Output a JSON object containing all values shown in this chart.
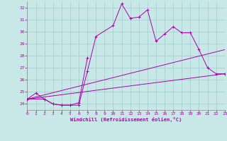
{
  "xlabel": "Windchill (Refroidissement éolien,°C)",
  "xlim": [
    0,
    23
  ],
  "ylim": [
    23.5,
    32.5
  ],
  "xticks": [
    0,
    1,
    2,
    3,
    4,
    5,
    6,
    7,
    8,
    9,
    10,
    11,
    12,
    13,
    14,
    15,
    16,
    17,
    18,
    19,
    20,
    21,
    22,
    23
  ],
  "yticks": [
    24,
    25,
    26,
    27,
    28,
    29,
    30,
    31,
    32
  ],
  "background_color": "#c8e8e8",
  "grid_color": "#a0cccc",
  "line_color": "#aa00aa",
  "lines": [
    {
      "x": [
        0,
        1,
        2,
        3,
        4,
        5,
        6,
        7,
        8,
        10,
        11,
        12,
        13,
        14,
        15,
        16,
        17,
        18,
        19,
        20,
        21,
        22,
        23
      ],
      "y": [
        24.4,
        24.9,
        24.4,
        24.0,
        23.9,
        23.9,
        23.9,
        26.7,
        29.6,
        30.5,
        32.3,
        31.1,
        31.2,
        31.8,
        29.2,
        29.8,
        30.4,
        29.9,
        29.9,
        28.5,
        27.0,
        26.5,
        26.5
      ],
      "marker": true
    },
    {
      "x": [
        0,
        2,
        3,
        4,
        5,
        6,
        7
      ],
      "y": [
        24.4,
        24.4,
        24.0,
        23.9,
        23.9,
        24.1,
        27.8
      ],
      "marker": true
    },
    {
      "x": [
        0,
        23
      ],
      "y": [
        24.4,
        26.5
      ],
      "marker": false
    },
    {
      "x": [
        0,
        23
      ],
      "y": [
        24.4,
        28.5
      ],
      "marker": false
    }
  ],
  "figsize": [
    3.2,
    2.0
  ],
  "dpi": 100
}
